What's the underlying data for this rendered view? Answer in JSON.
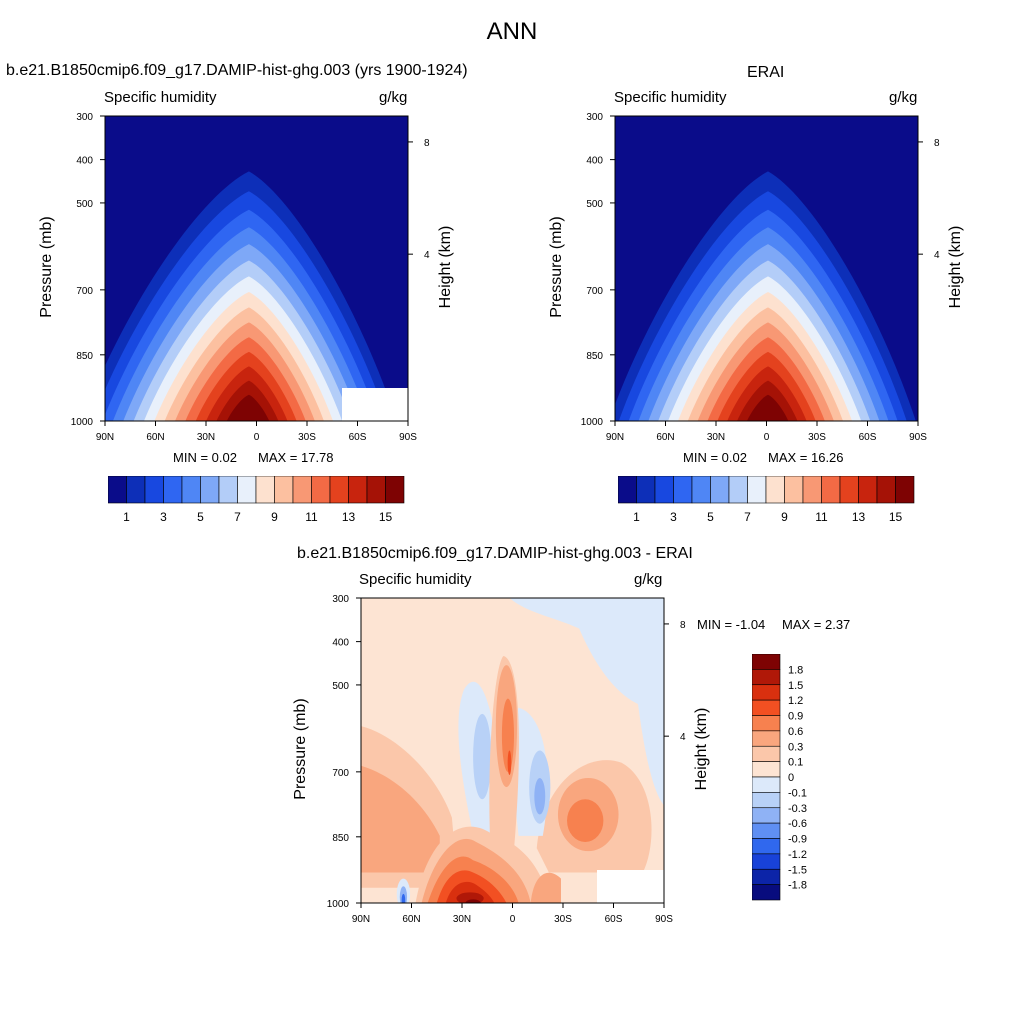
{
  "page": {
    "title": "ANN"
  },
  "chart_data": [
    {
      "type": "heatmap",
      "title": "b.e21.B1850cmip6.f09_g17.DAMIP-hist-ghg.003 (yrs 1900-1924)",
      "variable": "Specific humidity",
      "units": "g/kg",
      "ylabel": "Pressure (mb)",
      "y2label": "Height (km)",
      "xticks": [
        "90N",
        "60N",
        "30N",
        "0",
        "30S",
        "60S",
        "90S"
      ],
      "yticks": [
        "300",
        "400",
        "500",
        "700",
        "850",
        "1000"
      ],
      "y2ticks": [
        "8",
        "4"
      ],
      "min_label": "MIN =   0.02",
      "max_label": "MAX =  17.78",
      "min": 0.02,
      "max": 17.78,
      "colorbar_labels": [
        "1",
        "3",
        "5",
        "7",
        "9",
        "11",
        "13",
        "15"
      ],
      "colorbar_colors": [
        "#0a0c8a",
        "#0d2fb8",
        "#1848e0",
        "#2f66f2",
        "#4f86f5",
        "#7ea8f7",
        "#b3cdf8",
        "#e8f0fb",
        "#fde1cf",
        "#fcc0a0",
        "#f89874",
        "#f36a45",
        "#e4421e",
        "#c8240e",
        "#a51206",
        "#7e0303"
      ]
    },
    {
      "type": "heatmap",
      "title": "ERAI",
      "variable": "Specific humidity",
      "units": "g/kg",
      "ylabel": "Pressure (mb)",
      "y2label": "Height (km)",
      "xticks": [
        "90N",
        "60N",
        "30N",
        "0",
        "30S",
        "60S",
        "90S"
      ],
      "yticks": [
        "300",
        "400",
        "500",
        "700",
        "850",
        "1000"
      ],
      "y2ticks": [
        "8",
        "4"
      ],
      "min_label": "MIN =   0.02",
      "max_label": "MAX =  16.26",
      "min": 0.02,
      "max": 16.26,
      "colorbar_labels": [
        "1",
        "3",
        "5",
        "7",
        "9",
        "11",
        "13",
        "15"
      ],
      "colorbar_colors": [
        "#0a0c8a",
        "#0d2fb8",
        "#1848e0",
        "#2f66f2",
        "#4f86f5",
        "#7ea8f7",
        "#b3cdf8",
        "#e8f0fb",
        "#fde1cf",
        "#fcc0a0",
        "#f89874",
        "#f36a45",
        "#e4421e",
        "#c8240e",
        "#a51206",
        "#7e0303"
      ]
    },
    {
      "type": "heatmap",
      "title": "b.e21.B1850cmip6.f09_g17.DAMIP-hist-ghg.003 - ERAI",
      "variable": "Specific humidity",
      "units": "g/kg",
      "ylabel": "Pressure (mb)",
      "y2label": "Height (km)",
      "xticks": [
        "90N",
        "60N",
        "30N",
        "0",
        "30S",
        "60S",
        "90S"
      ],
      "yticks": [
        "300",
        "400",
        "500",
        "700",
        "850",
        "1000"
      ],
      "y2ticks": [
        "8",
        "4"
      ],
      "min_label": "MIN =  -1.04",
      "max_label": "MAX =   2.37",
      "min": -1.04,
      "max": 2.37,
      "colorbar_labels": [
        "1.8",
        "1.5",
        "1.2",
        "0.9",
        "0.6",
        "0.3",
        "0.1",
        "0",
        "-0.1",
        "-0.3",
        "-0.6",
        "-0.9",
        "-1.2",
        "-1.5",
        "-1.8"
      ],
      "colorbar_colors": [
        "#7e0303",
        "#b01808",
        "#d9300f",
        "#f25022",
        "#f7814f",
        "#f9a67e",
        "#fbc7aa",
        "#fde4d3",
        "#dce9fa",
        "#b8d1f7",
        "#8fb2f5",
        "#5f8ff3",
        "#3068ee",
        "#1842d8",
        "#0c24a8",
        "#080c7e"
      ]
    }
  ]
}
